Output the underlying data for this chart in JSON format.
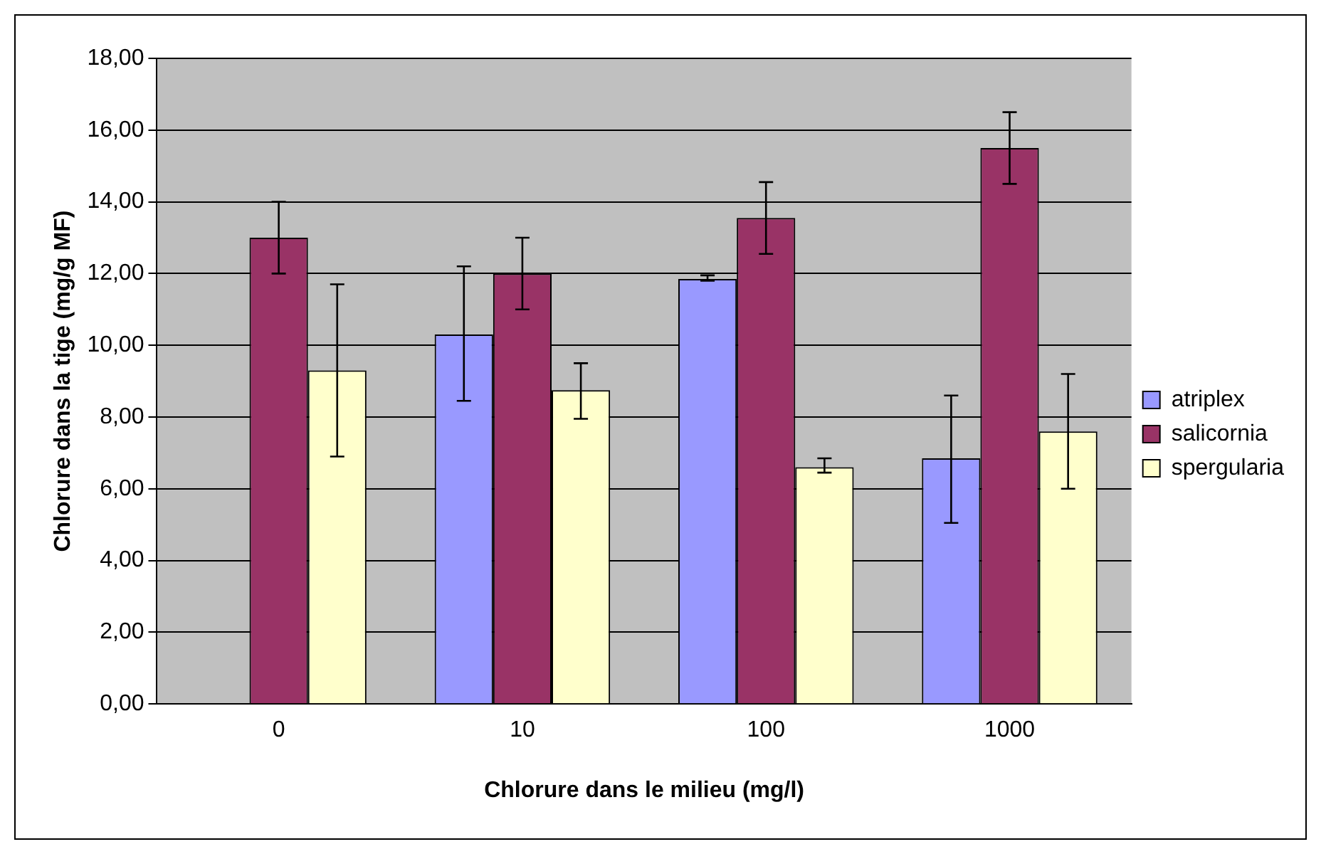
{
  "chart_data": {
    "type": "bar",
    "xlabel": "Chlorure dans le milieu (mg/l)",
    "ylabel": "Chlorure dans la tige (mg/g MF)",
    "categories": [
      "0",
      "10",
      "100",
      "1000"
    ],
    "series": [
      {
        "name": "atriplex",
        "color": "#9999ff",
        "values": [
          null,
          10.3,
          11.85,
          6.85
        ],
        "errors": [
          null,
          [
            8.45,
            12.2
          ],
          [
            11.8,
            11.95
          ],
          [
            5.05,
            8.6
          ]
        ]
      },
      {
        "name": "salicornia",
        "color": "#993366",
        "values": [
          13.0,
          12.0,
          13.55,
          15.5
        ],
        "errors": [
          [
            12.0,
            14.0
          ],
          [
            11.0,
            13.0
          ],
          [
            12.55,
            14.55
          ],
          [
            14.5,
            16.5
          ]
        ]
      },
      {
        "name": "spergularia",
        "color": "#ffffcc",
        "values": [
          9.3,
          8.75,
          6.6,
          7.6
        ],
        "errors": [
          [
            6.9,
            11.7
          ],
          [
            7.95,
            9.5
          ],
          [
            6.45,
            6.85
          ],
          [
            6.0,
            9.2
          ]
        ]
      }
    ],
    "ylim": [
      0,
      18
    ],
    "yticks": [
      {
        "value": 0,
        "label": "0,00"
      },
      {
        "value": 2,
        "label": "2,00"
      },
      {
        "value": 4,
        "label": "4,00"
      },
      {
        "value": 6,
        "label": "6,00"
      },
      {
        "value": 8,
        "label": "8,00"
      },
      {
        "value": 10,
        "label": "10,00"
      },
      {
        "value": 12,
        "label": "12,00"
      },
      {
        "value": 14,
        "label": "14,00"
      },
      {
        "value": 16,
        "label": "16,00"
      },
      {
        "value": 18,
        "label": "18,00"
      }
    ],
    "grid": "y",
    "legend": "right"
  }
}
